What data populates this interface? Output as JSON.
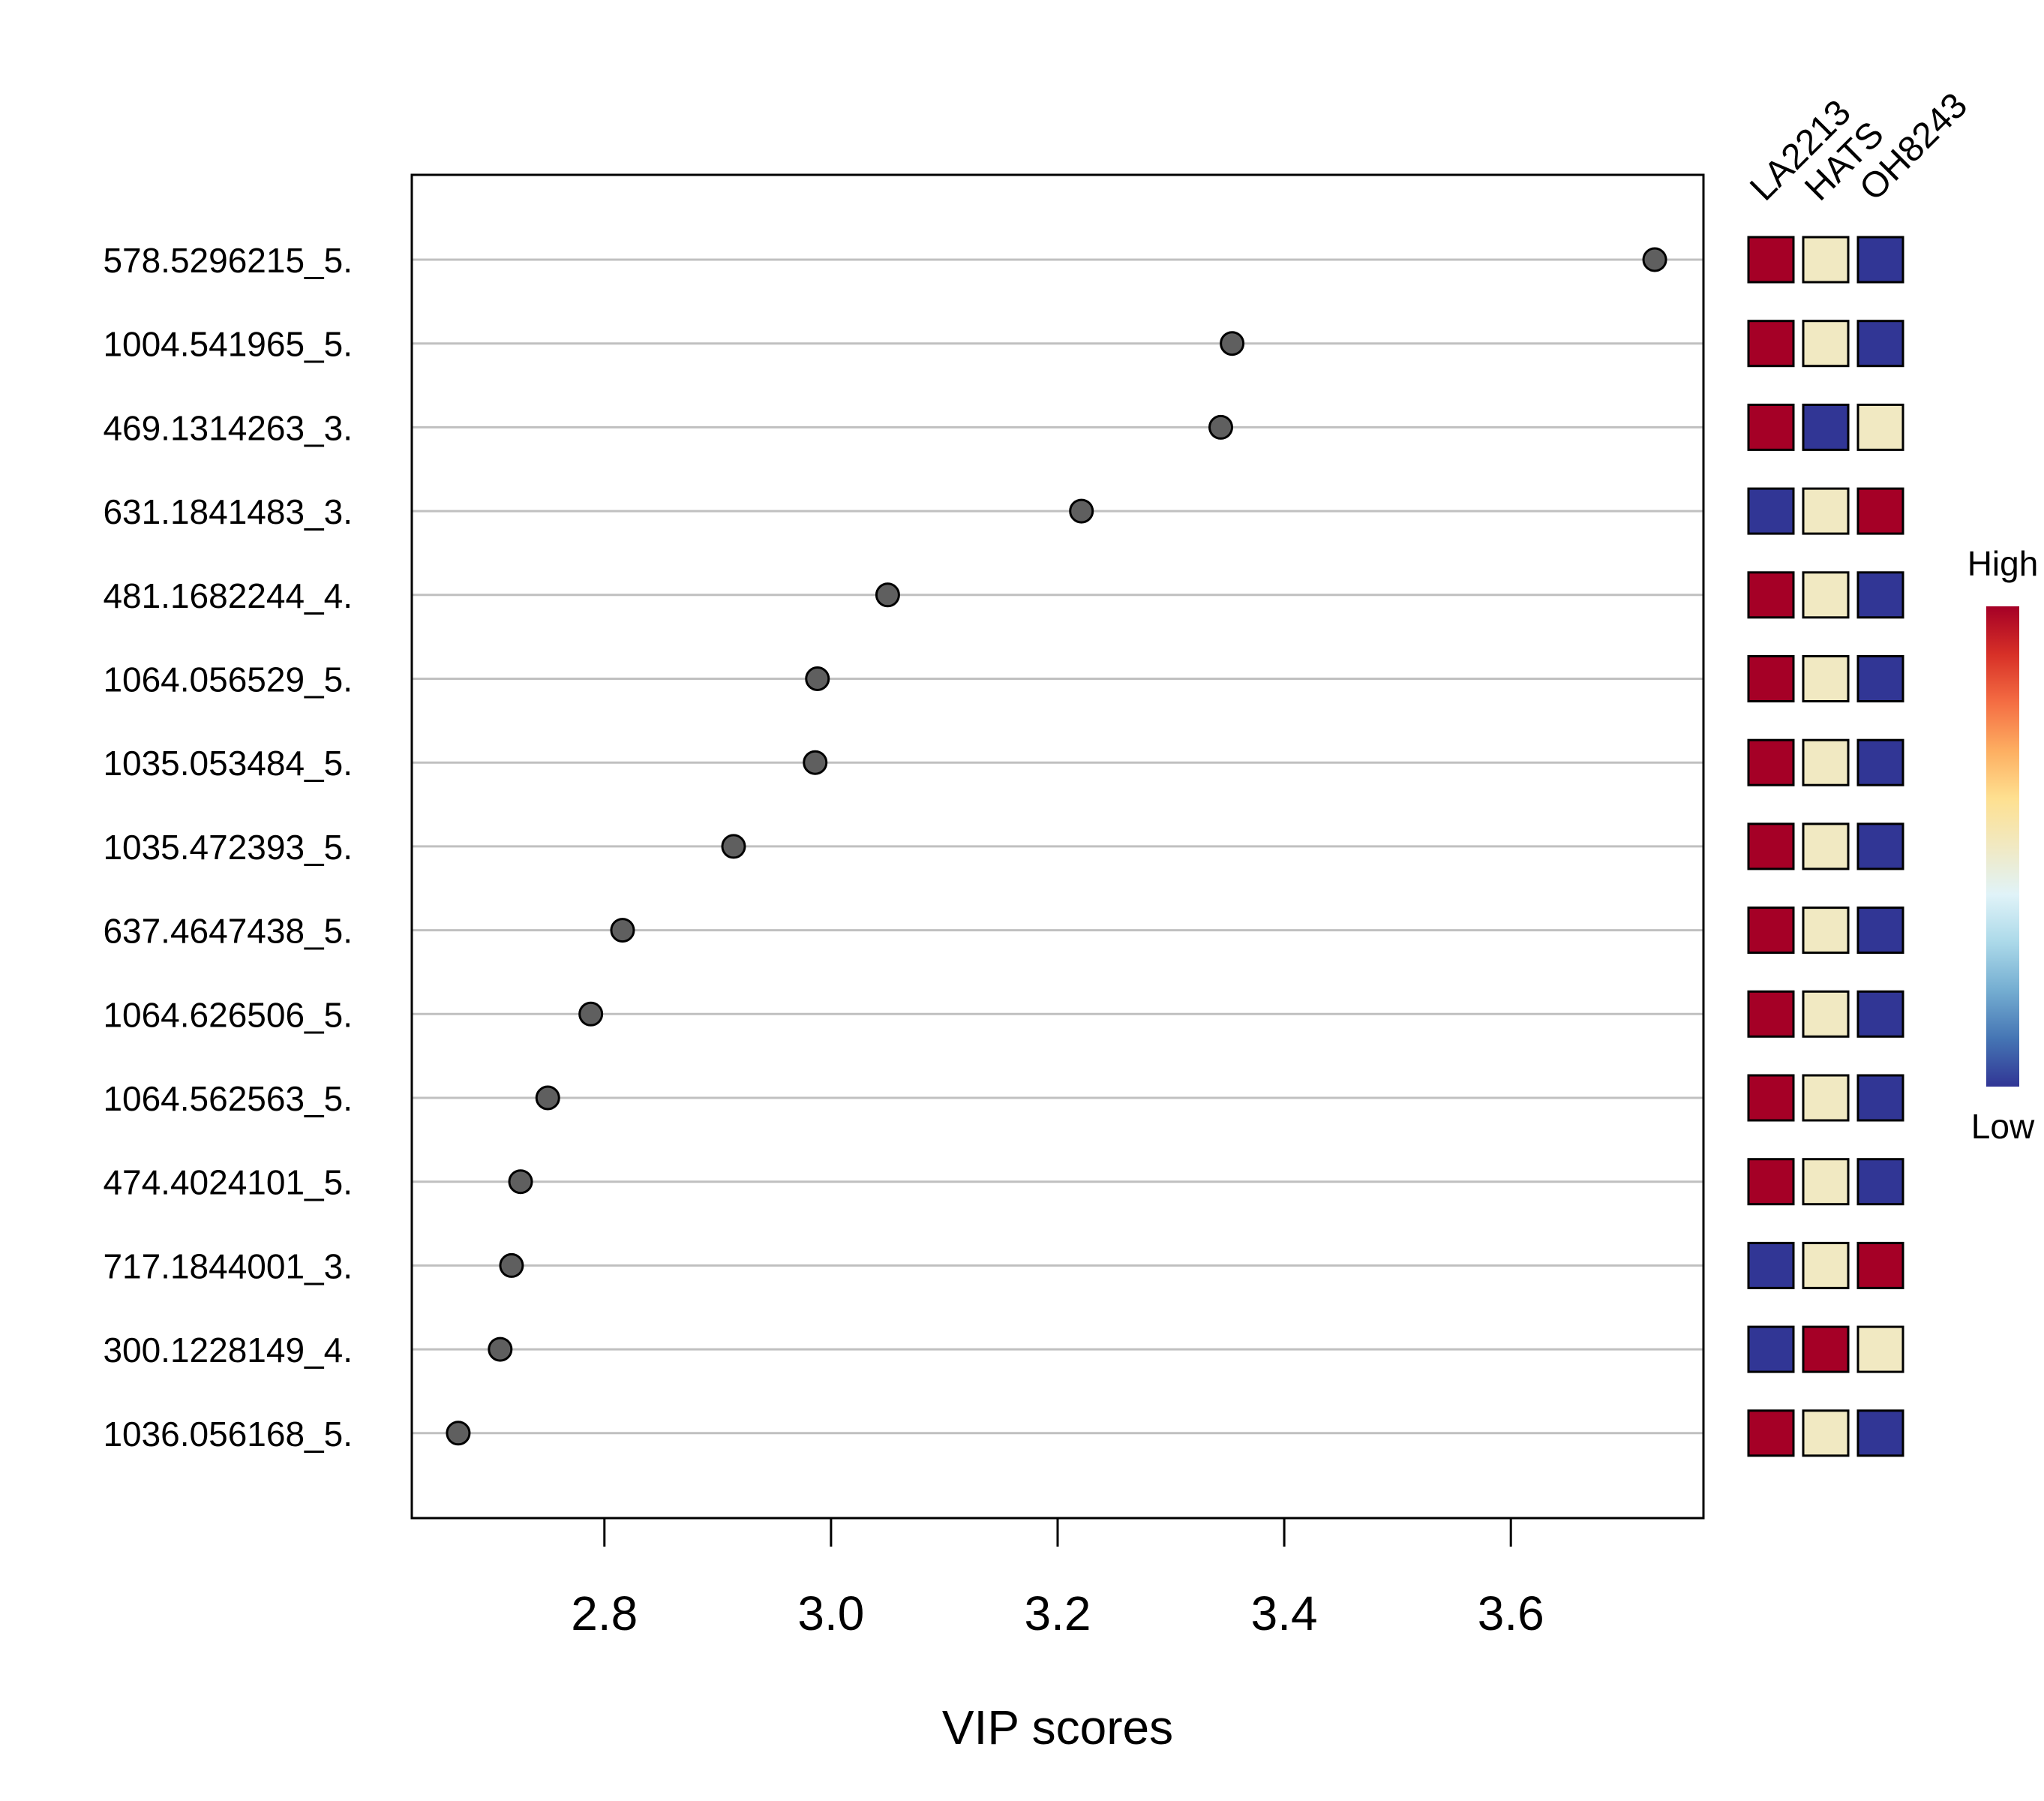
{
  "colors": {
    "high": "#A50026",
    "mid": "#F1E9C2",
    "low": "#313695",
    "point_fill": "#5F5F5F",
    "grid": "#C0C0C0",
    "gradient": [
      "#313695",
      "#4575B4",
      "#74ADD1",
      "#ABD9E9",
      "#E0F3F8",
      "#F1E9C2",
      "#FEE090",
      "#FDAE61",
      "#F46D43",
      "#D73027",
      "#A50026"
    ]
  },
  "chart_data": {
    "type": "scatter",
    "title": "",
    "xlabel": "VIP scores",
    "ylabel": "",
    "xlim": [
      2.63,
      3.77
    ],
    "x_ticks": [
      "2.8",
      "3.0",
      "3.2",
      "3.4",
      "3.6"
    ],
    "grid": true,
    "features": [
      {
        "label": "578.5296215_5.",
        "vip": 3.727,
        "levels": [
          "high",
          "mid",
          "low"
        ]
      },
      {
        "label": "1004.541965_5.",
        "vip": 3.354,
        "levels": [
          "high",
          "mid",
          "low"
        ]
      },
      {
        "label": "469.1314263_3.",
        "vip": 3.344,
        "levels": [
          "high",
          "low",
          "mid"
        ]
      },
      {
        "label": "631.1841483_3.",
        "vip": 3.221,
        "levels": [
          "low",
          "mid",
          "high"
        ]
      },
      {
        "label": "481.1682244_4.",
        "vip": 3.05,
        "levels": [
          "high",
          "mid",
          "low"
        ]
      },
      {
        "label": "1064.056529_5.",
        "vip": 2.988,
        "levels": [
          "high",
          "mid",
          "low"
        ]
      },
      {
        "label": "1035.053484_5.",
        "vip": 2.986,
        "levels": [
          "high",
          "mid",
          "low"
        ]
      },
      {
        "label": "1035.472393_5.",
        "vip": 2.914,
        "levels": [
          "high",
          "mid",
          "low"
        ]
      },
      {
        "label": "637.4647438_5.",
        "vip": 2.816,
        "levels": [
          "high",
          "mid",
          "low"
        ]
      },
      {
        "label": "1064.626506_5.",
        "vip": 2.788,
        "levels": [
          "high",
          "mid",
          "low"
        ]
      },
      {
        "label": "1064.562563_5.",
        "vip": 2.75,
        "levels": [
          "high",
          "mid",
          "low"
        ]
      },
      {
        "label": "474.4024101_5.",
        "vip": 2.726,
        "levels": [
          "high",
          "mid",
          "low"
        ]
      },
      {
        "label": "717.1844001_3.",
        "vip": 2.718,
        "levels": [
          "low",
          "mid",
          "high"
        ]
      },
      {
        "label": "300.1228149_4.",
        "vip": 2.708,
        "levels": [
          "low",
          "high",
          "mid"
        ]
      },
      {
        "label": "1036.056168_5.",
        "vip": 2.671,
        "levels": [
          "high",
          "mid",
          "low"
        ]
      }
    ],
    "groups": [
      "LA2213",
      "HATS",
      "OH8243"
    ],
    "legend": {
      "high_label": "High",
      "low_label": "Low"
    }
  }
}
